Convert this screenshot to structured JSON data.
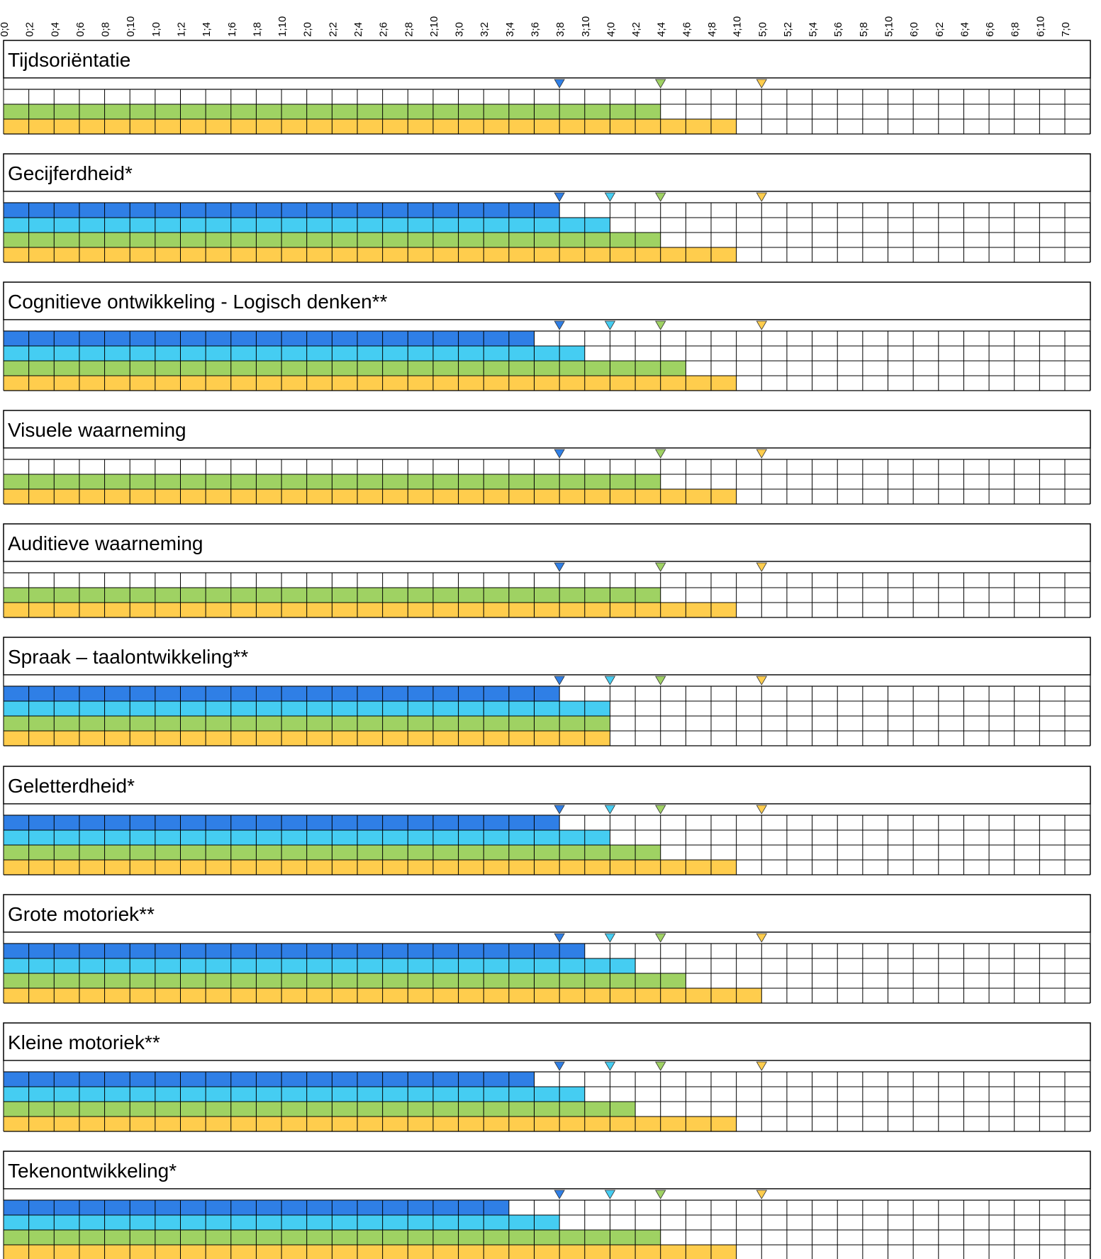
{
  "colors": {
    "dark_blue": "#2f7fe6",
    "light_blue": "#45cdf2",
    "green": "#9fd263",
    "yellow": "#ffcd4d",
    "grid": "#000000"
  },
  "chart_data": {
    "type": "table",
    "x_ticks": [
      "0;0",
      "0;2",
      "0;4",
      "0;6",
      "0;8",
      "0;10",
      "1;0",
      "1;2",
      "1;4",
      "1;6",
      "1;8",
      "1;10",
      "2;0",
      "2;2",
      "2;4",
      "2;6",
      "2;8",
      "2;10",
      "3;0",
      "3;2",
      "3;4",
      "3;6",
      "3;8",
      "3;10",
      "4;0",
      "4;2",
      "4;4",
      "4;6",
      "4;8",
      "4;10",
      "5;0",
      "5;2",
      "5;4",
      "5;6",
      "5;8",
      "5;10",
      "6;0",
      "6;2",
      "6;4",
      "6;6",
      "6;8",
      "6;10",
      "7;0"
    ],
    "marker_ages": {
      "dark_blue": "3;8",
      "light_blue": "4;0",
      "green": "4;4",
      "yellow": "5;0"
    },
    "panels": [
      {
        "title": "Tijdsoriëntatie",
        "markers": [
          "dark_blue",
          "green",
          "yellow"
        ],
        "rows": [
          {
            "color": "none",
            "filled_until": null
          },
          {
            "color": "green",
            "filled_until": "4;4"
          },
          {
            "color": "yellow",
            "filled_until": "4;10"
          }
        ]
      },
      {
        "title": "Gecijferdheid*",
        "markers": [
          "dark_blue",
          "light_blue",
          "green",
          "yellow"
        ],
        "rows": [
          {
            "color": "dark_blue",
            "filled_until": "3;8"
          },
          {
            "color": "light_blue",
            "filled_until": "4;0"
          },
          {
            "color": "green",
            "filled_until": "4;4"
          },
          {
            "color": "yellow",
            "filled_until": "4;10"
          }
        ]
      },
      {
        "title": "Cognitieve ontwikkeling - Logisch denken**",
        "markers": [
          "dark_blue",
          "light_blue",
          "green",
          "yellow"
        ],
        "rows": [
          {
            "color": "dark_blue",
            "filled_until": "3;6"
          },
          {
            "color": "light_blue",
            "filled_until": "3;10"
          },
          {
            "color": "green",
            "filled_until": "4;6"
          },
          {
            "color": "yellow",
            "filled_until": "4;10"
          }
        ]
      },
      {
        "title": "Visuele waarneming",
        "markers": [
          "dark_blue",
          "green",
          "yellow"
        ],
        "rows": [
          {
            "color": "none",
            "filled_until": null
          },
          {
            "color": "green",
            "filled_until": "4;4"
          },
          {
            "color": "yellow",
            "filled_until": "4;10"
          }
        ]
      },
      {
        "title": "Auditieve waarneming",
        "markers": [
          "dark_blue",
          "green",
          "yellow"
        ],
        "rows": [
          {
            "color": "none",
            "filled_until": null
          },
          {
            "color": "green",
            "filled_until": "4;4"
          },
          {
            "color": "yellow",
            "filled_until": "4;10"
          }
        ]
      },
      {
        "title": "Spraak – taalontwikkeling**",
        "markers": [
          "dark_blue",
          "light_blue",
          "green",
          "yellow"
        ],
        "rows": [
          {
            "color": "dark_blue",
            "filled_until": "3;8"
          },
          {
            "color": "light_blue",
            "filled_until": "4;0"
          },
          {
            "color": "green",
            "filled_until": "4;0"
          },
          {
            "color": "yellow",
            "filled_until": "4;0"
          }
        ]
      },
      {
        "title": "Geletterdheid*",
        "markers": [
          "dark_blue",
          "light_blue",
          "green",
          "yellow"
        ],
        "rows": [
          {
            "color": "dark_blue",
            "filled_until": "3;8"
          },
          {
            "color": "light_blue",
            "filled_until": "4;0"
          },
          {
            "color": "green",
            "filled_until": "4;4"
          },
          {
            "color": "yellow",
            "filled_until": "4;10"
          }
        ]
      },
      {
        "title": "Grote motoriek**",
        "markers": [
          "dark_blue",
          "light_blue",
          "green",
          "yellow"
        ],
        "rows": [
          {
            "color": "dark_blue",
            "filled_until": "3;10"
          },
          {
            "color": "light_blue",
            "filled_until": "4;2"
          },
          {
            "color": "green",
            "filled_until": "4;6"
          },
          {
            "color": "yellow",
            "filled_until": "5;0"
          }
        ]
      },
      {
        "title": "Kleine motoriek**",
        "markers": [
          "dark_blue",
          "light_blue",
          "green",
          "yellow"
        ],
        "rows": [
          {
            "color": "dark_blue",
            "filled_until": "3;6"
          },
          {
            "color": "light_blue",
            "filled_until": "3;10"
          },
          {
            "color": "green",
            "filled_until": "4;2"
          },
          {
            "color": "yellow",
            "filled_until": "4;10"
          }
        ]
      },
      {
        "title": "Tekenontwikkeling*",
        "markers": [
          "dark_blue",
          "light_blue",
          "green",
          "yellow"
        ],
        "rows": [
          {
            "color": "dark_blue",
            "filled_until": "3;4"
          },
          {
            "color": "light_blue",
            "filled_until": "3;8"
          },
          {
            "color": "green",
            "filled_until": "4;4"
          },
          {
            "color": "yellow",
            "filled_until": "4;10"
          }
        ]
      }
    ]
  }
}
